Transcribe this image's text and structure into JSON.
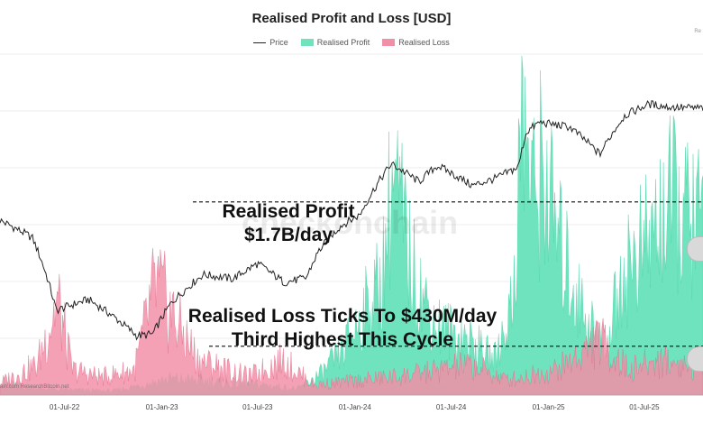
{
  "chart_data": {
    "type": "area",
    "title": "Realised Profit and Loss [USD]",
    "legend": [
      "Price",
      "Realised Profit",
      "Realised Loss"
    ],
    "legend_placement": "top-center",
    "x_ticks": [
      "01-Jul-22",
      "01-Jan-23",
      "01-Jul-23",
      "01-Jan-24",
      "01-Jul-24",
      "01-Jan-25",
      "01-Jul-25"
    ],
    "series": [
      {
        "name": "Price",
        "style": "line",
        "x": [
          "2022-03-01",
          "2022-05-01",
          "2022-06-15",
          "2022-08-15",
          "2022-10-01",
          "2022-11-15",
          "2022-12-15",
          "2023-01-20",
          "2023-03-20",
          "2023-05-15",
          "2023-07-01",
          "2023-08-20",
          "2023-10-01",
          "2023-10-25",
          "2023-12-05",
          "2024-01-10",
          "2024-03-10",
          "2024-05-01",
          "2024-06-05",
          "2024-08-10",
          "2024-09-25",
          "2024-11-05",
          "2024-11-20",
          "2024-12-15",
          "2025-02-10",
          "2025-04-08",
          "2025-05-25",
          "2025-07-10",
          "2025-08-15",
          "2025-10-01"
        ],
        "values": [
          44000,
          38000,
          20500,
          22500,
          19500,
          16500,
          16800,
          22000,
          27800,
          26800,
          30500,
          26000,
          27000,
          34000,
          42000,
          46000,
          71000,
          61000,
          70000,
          59000,
          63000,
          69000,
          93000,
          101000,
          97000,
          77000,
          107000,
          118000,
          115000,
          114000
        ]
      },
      {
        "name": "Realised Profit",
        "style": "area",
        "x": [
          "2022-03-01",
          "2022-06-01",
          "2022-08-01",
          "2022-10-01",
          "2023-01-15",
          "2023-03-20",
          "2023-05-01",
          "2023-07-15",
          "2023-09-15",
          "2023-11-01",
          "2023-12-10",
          "2024-01-15",
          "2024-02-20",
          "2024-03-12",
          "2024-04-20",
          "2024-06-01",
          "2024-08-01",
          "2024-09-20",
          "2024-10-25",
          "2024-11-13",
          "2024-12-05",
          "2024-12-20",
          "2025-01-20",
          "2025-03-01",
          "2025-04-20",
          "2025-05-20",
          "2025-07-15",
          "2025-08-15",
          "2025-10-01"
        ],
        "values": [
          0.12,
          0.06,
          0.05,
          0.04,
          0.16,
          0.14,
          0.12,
          0.1,
          0.06,
          0.22,
          0.45,
          0.8,
          1.1,
          2.15,
          1.2,
          0.7,
          0.55,
          0.35,
          0.9,
          2.8,
          1.9,
          2.3,
          1.5,
          0.9,
          0.45,
          1.2,
          1.55,
          1.9,
          1.7
        ]
      },
      {
        "name": "Realised Loss",
        "style": "area",
        "x": [
          "2022-03-01",
          "2022-05-10",
          "2022-06-18",
          "2022-07-15",
          "2022-09-10",
          "2022-11-10",
          "2022-12-20",
          "2023-03-10",
          "2023-06-15",
          "2023-08-18",
          "2023-10-15",
          "2024-01-15",
          "2024-04-15",
          "2024-08-05",
          "2024-10-15",
          "2025-01-15",
          "2025-03-01",
          "2025-04-07",
          "2025-06-01",
          "2025-08-01",
          "2025-10-01"
        ],
        "values": [
          0.12,
          0.3,
          0.95,
          0.25,
          0.18,
          0.25,
          1.1,
          0.35,
          0.18,
          0.35,
          0.1,
          0.15,
          0.2,
          0.3,
          0.15,
          0.25,
          0.4,
          0.55,
          0.25,
          0.35,
          0.28
        ]
      }
    ],
    "yaxis_left_unit": "billion USD/day",
    "yaxis_right_unit": "USD",
    "ylim_left": [
      0,
      3.0
    ],
    "ylim_right": [
      10000,
      180000
    ],
    "yscale_right": "log",
    "grid": true,
    "annotations": [
      {
        "lines": [
          "Realised Profit",
          "$1.7B/day"
        ],
        "level": 1.7
      },
      {
        "lines": [
          "Realised Loss Ticks To $430M/day",
          "Third Highest This Cycle"
        ],
        "level": 0.43
      }
    ],
    "watermark": "checkonchain",
    "credit": "ain.com  ResearchBitcoin.net",
    "corner_tag": "Re"
  },
  "colors": {
    "price": "#222222",
    "profit": "#6fe3bd",
    "loss": "#f28fa8",
    "overlap": "#d69a8c"
  }
}
